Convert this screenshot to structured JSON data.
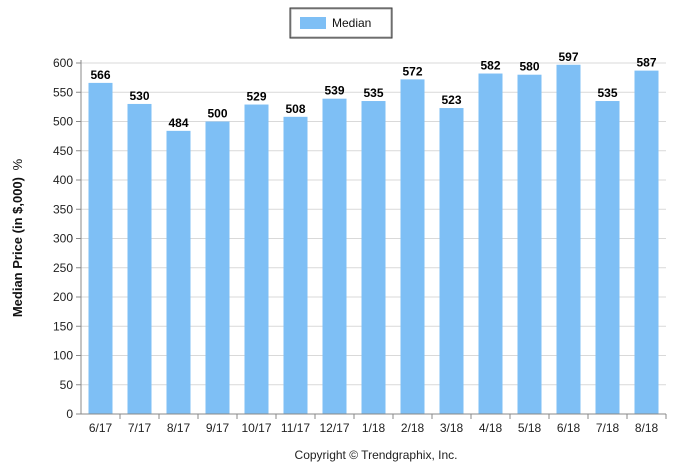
{
  "chart_data": {
    "type": "bar",
    "categories": [
      "6/17",
      "7/17",
      "8/17",
      "9/17",
      "10/17",
      "11/17",
      "12/17",
      "1/18",
      "2/18",
      "3/18",
      "4/18",
      "5/18",
      "6/18",
      "7/18",
      "8/18"
    ],
    "series": [
      {
        "name": "Median",
        "values": [
          566,
          530,
          484,
          500,
          529,
          508,
          539,
          535,
          572,
          523,
          582,
          580,
          597,
          535,
          587
        ]
      }
    ],
    "ylabel": "Median Price (in $,000)",
    "ylabel_suffix": "%",
    "ylim": [
      0,
      600
    ],
    "yticks": [
      0,
      50,
      100,
      150,
      200,
      250,
      300,
      350,
      400,
      450,
      500,
      550,
      600
    ],
    "grid": true,
    "legend_position": "top-center",
    "bar_color": "#7ebff5",
    "footer": "Copyright © Trendgraphix, Inc."
  }
}
